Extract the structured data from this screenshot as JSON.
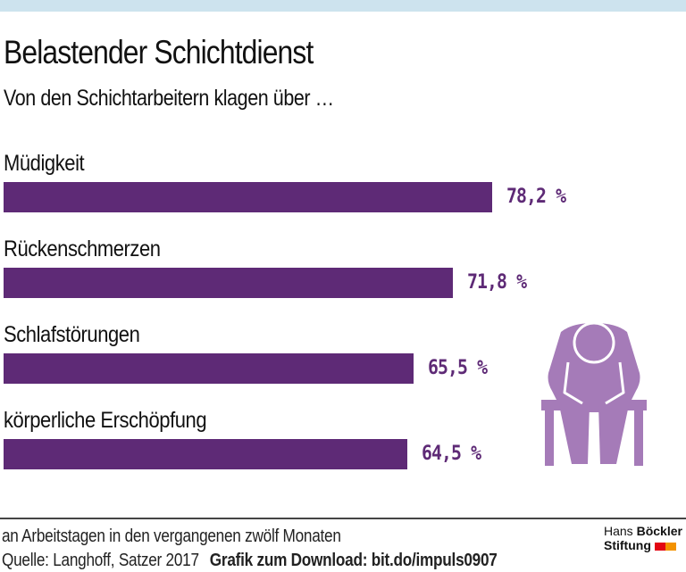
{
  "header": {
    "title": "Belastender Schichtdienst",
    "subtitle": "Von den Schichtarbeitern klagen über …"
  },
  "chart_data": {
    "type": "bar",
    "orientation": "horizontal",
    "title": "Belastender Schichtdienst",
    "subtitle": "Von den Schichtarbeitern klagen über …",
    "categories": [
      "Müdigkeit",
      "Rückenschmerzen",
      "Schlafstörungen",
      "körperliche Erschöpfung"
    ],
    "values": [
      78.2,
      71.8,
      65.5,
      64.5
    ],
    "value_labels": [
      "78,2 %",
      "71,8 %",
      "65,5 %",
      "64,5 %"
    ],
    "unit": "%",
    "xlim": [
      0,
      100
    ],
    "grid": false,
    "xlabel": "",
    "ylabel": ""
  },
  "colors": {
    "bar": "#5e2a76",
    "value_text": "#5e2a76",
    "figure": "#a57bb8",
    "top_band": "#cde3ee",
    "logo_red": "#e30613",
    "logo_orange": "#f39200"
  },
  "footer": {
    "note": "an Arbeitstagen in den vergangenen zwölf Monaten",
    "source": "Quelle: Langhoff, Satzer 2017",
    "download": "Grafik zum Download: bit.do/impuls0907"
  },
  "logo": {
    "line1_light": "Hans",
    "line1_bold": "Böckler",
    "line2_bold": "Stiftung"
  }
}
